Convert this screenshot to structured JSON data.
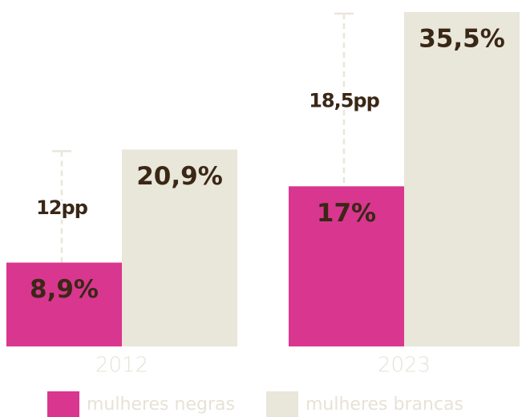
{
  "chart_data": {
    "type": "bar",
    "categories": [
      "2012",
      "2023"
    ],
    "series": [
      {
        "name": "mulheres negras",
        "color": "#d9368f",
        "values": [
          8.9,
          17
        ],
        "value_labels": [
          "8,9%",
          "17%"
        ]
      },
      {
        "name": "mulheres brancas",
        "color": "#e9e6da",
        "values": [
          20.9,
          35.5
        ],
        "value_labels": [
          "20,9%",
          "35,5%"
        ]
      }
    ],
    "annotations": [
      "12pp",
      "18,5pp"
    ]
  }
}
